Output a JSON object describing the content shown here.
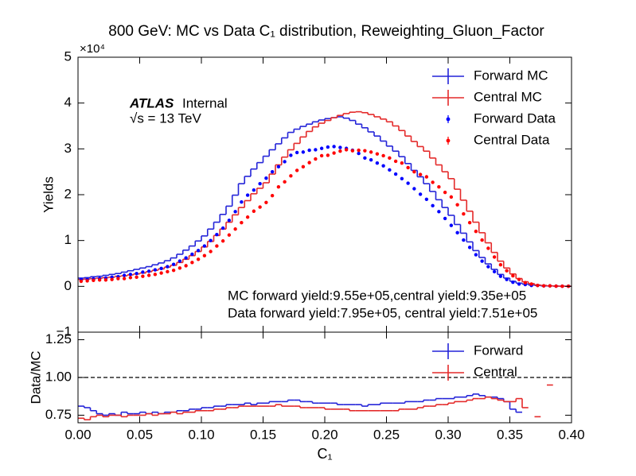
{
  "chart_data": [
    {
      "type": "histogram",
      "title": "800 GeV: MC vs Data C₁ distribution, Reweighting_Gluon_Factor",
      "y_label": "Yields",
      "y_multiplier": "×10⁴",
      "atlas_label": "ATLAS",
      "atlas_status": "Internal",
      "energy_label": "√s = 13 TeV",
      "annotations": [
        "MC forward yield:9.55e+05,central yield:9.35e+05",
        "Data forward yield:7.95e+05, central yield:7.51e+05"
      ],
      "ylim": [
        -1,
        5
      ],
      "yticks": [
        {
          "value": -1,
          "label": "−1"
        },
        0,
        1,
        2,
        3,
        4,
        5
      ],
      "legend": "upper right",
      "bins": [
        0,
        0.005,
        0.01,
        0.015,
        0.02,
        0.025,
        0.03,
        0.035,
        0.04,
        0.045,
        0.05,
        0.055,
        0.06,
        0.065,
        0.07,
        0.075,
        0.08,
        0.085,
        0.09,
        0.095,
        0.1,
        0.105,
        0.11,
        0.115,
        0.12,
        0.125,
        0.13,
        0.135,
        0.14,
        0.145,
        0.15,
        0.155,
        0.16,
        0.165,
        0.17,
        0.175,
        0.18,
        0.185,
        0.19,
        0.195,
        0.2,
        0.205,
        0.21,
        0.215,
        0.22,
        0.225,
        0.23,
        0.235,
        0.24,
        0.245,
        0.25,
        0.255,
        0.26,
        0.265,
        0.27,
        0.275,
        0.28,
        0.285,
        0.29,
        0.295,
        0.3,
        0.305,
        0.31,
        0.315,
        0.32,
        0.325,
        0.33,
        0.335,
        0.34,
        0.345,
        0.35,
        0.355,
        0.36,
        0.365,
        0.37,
        0.375,
        0.38,
        0.385,
        0.39,
        0.395,
        0.4
      ],
      "series": [
        {
          "name": "Forward MC",
          "color": "#2424d8",
          "style": "step",
          "values": [
            0.18,
            0.19,
            0.21,
            0.22,
            0.24,
            0.26,
            0.28,
            0.31,
            0.34,
            0.37,
            0.4,
            0.43,
            0.47,
            0.51,
            0.56,
            0.62,
            0.7,
            0.79,
            0.88,
            0.99,
            1.1,
            1.25,
            1.4,
            1.57,
            1.75,
            1.99,
            2.24,
            2.4,
            2.56,
            2.7,
            2.84,
            2.98,
            3.11,
            3.24,
            3.36,
            3.43,
            3.49,
            3.54,
            3.59,
            3.63,
            3.66,
            3.68,
            3.7,
            3.67,
            3.62,
            3.54,
            3.46,
            3.37,
            3.28,
            3.17,
            3.06,
            2.95,
            2.83,
            2.68,
            2.53,
            2.39,
            2.24,
            2.07,
            1.89,
            1.72,
            1.55,
            1.35,
            1.16,
            0.97,
            0.78,
            0.63,
            0.49,
            0.37,
            0.26,
            0.18,
            0.11,
            0.07,
            0.05,
            0.03,
            0.02,
            0.01,
            0.01,
            0.005,
            0.003,
            0.002
          ]
        },
        {
          "name": "Central MC",
          "color": "#e42a2a",
          "style": "step",
          "values": [
            0.15,
            0.16,
            0.17,
            0.18,
            0.19,
            0.2,
            0.22,
            0.23,
            0.25,
            0.27,
            0.29,
            0.32,
            0.35,
            0.38,
            0.42,
            0.46,
            0.52,
            0.59,
            0.67,
            0.76,
            0.86,
            0.98,
            1.11,
            1.25,
            1.4,
            1.56,
            1.72,
            1.87,
            2.02,
            2.14,
            2.26,
            2.45,
            2.65,
            2.82,
            2.98,
            3.12,
            3.26,
            3.38,
            3.48,
            3.56,
            3.62,
            3.68,
            3.73,
            3.77,
            3.8,
            3.81,
            3.79,
            3.75,
            3.7,
            3.65,
            3.59,
            3.5,
            3.4,
            3.28,
            3.16,
            3.05,
            2.95,
            2.8,
            2.65,
            2.5,
            2.35,
            2.12,
            1.88,
            1.64,
            1.4,
            1.17,
            0.95,
            0.74,
            0.55,
            0.4,
            0.27,
            0.17,
            0.1,
            0.06,
            0.03,
            0.02,
            0.01,
            0.006,
            0.003,
            0.002
          ]
        },
        {
          "name": "Forward Data",
          "color": "#0000ff",
          "style": "points",
          "values": [
            0.15,
            0.15,
            0.16,
            0.17,
            0.18,
            0.2,
            0.21,
            0.24,
            0.26,
            0.28,
            0.31,
            0.33,
            0.36,
            0.39,
            0.43,
            0.48,
            0.55,
            0.62,
            0.7,
            0.78,
            0.88,
            1.0,
            1.13,
            1.27,
            1.44,
            1.63,
            1.84,
            1.99,
            2.1,
            2.24,
            2.36,
            2.5,
            2.61,
            2.72,
            2.86,
            2.92,
            2.93,
            2.97,
            2.98,
            3.01,
            3.04,
            3.05,
            3.03,
            3.01,
            2.97,
            2.9,
            2.8,
            2.76,
            2.69,
            2.63,
            2.54,
            2.45,
            2.35,
            2.25,
            2.13,
            2.01,
            1.9,
            1.76,
            1.63,
            1.48,
            1.33,
            1.17,
            1.01,
            0.85,
            0.69,
            0.55,
            0.43,
            0.32,
            0.22,
            0.15,
            0.09,
            0.05,
            0.04,
            0.02,
            0.02,
            0.01,
            0.01,
            0.004,
            0.002,
            0.002
          ]
        },
        {
          "name": "Central Data",
          "color": "#ff0000",
          "style": "points",
          "values": [
            0.11,
            0.12,
            0.13,
            0.14,
            0.14,
            0.15,
            0.17,
            0.17,
            0.19,
            0.2,
            0.22,
            0.24,
            0.26,
            0.29,
            0.32,
            0.35,
            0.4,
            0.45,
            0.52,
            0.59,
            0.67,
            0.76,
            0.88,
            0.99,
            1.12,
            1.25,
            1.39,
            1.51,
            1.64,
            1.73,
            1.83,
            1.98,
            2.17,
            2.28,
            2.41,
            2.53,
            2.61,
            2.7,
            2.78,
            2.85,
            2.86,
            2.91,
            2.95,
            2.98,
            2.96,
            2.97,
            2.96,
            2.93,
            2.89,
            2.85,
            2.8,
            2.73,
            2.69,
            2.59,
            2.5,
            2.44,
            2.39,
            2.27,
            2.17,
            2.05,
            1.95,
            1.78,
            1.58,
            1.39,
            1.2,
            1.01,
            0.83,
            0.64,
            0.47,
            0.34,
            0.23,
            0.15,
            0.08,
            0.05,
            0.02,
            0.01,
            0.01,
            0.005,
            0.002,
            0.002
          ]
        }
      ]
    },
    {
      "type": "histogram",
      "y_label": "Data/MC",
      "x_label": "C₁",
      "xlim": [
        0,
        0.4
      ],
      "xticks": [
        {
          "value": 0,
          "label": "0.00"
        },
        {
          "value": 0.05,
          "label": "0.05"
        },
        {
          "value": 0.1,
          "label": "0.10"
        },
        {
          "value": 0.15,
          "label": "0.15"
        },
        {
          "value": 0.2,
          "label": "0.20"
        },
        {
          "value": 0.25,
          "label": "0.25"
        },
        {
          "value": 0.3,
          "label": "0.30"
        },
        {
          "value": 0.35,
          "label": "0.35"
        },
        {
          "value": 0.4,
          "label": "0.40"
        }
      ],
      "ylim": [
        0.7,
        1.3
      ],
      "yticks": [
        0.75,
        {
          "value": 1,
          "label": "1.00"
        },
        1.25
      ],
      "ref_line": 1,
      "legend": "upper right",
      "bins": [
        0,
        0.005,
        0.01,
        0.015,
        0.02,
        0.025,
        0.03,
        0.035,
        0.04,
        0.045,
        0.05,
        0.055,
        0.06,
        0.065,
        0.07,
        0.075,
        0.08,
        0.085,
        0.09,
        0.095,
        0.1,
        0.105,
        0.11,
        0.115,
        0.12,
        0.125,
        0.13,
        0.135,
        0.14,
        0.145,
        0.15,
        0.155,
        0.16,
        0.165,
        0.17,
        0.175,
        0.18,
        0.185,
        0.19,
        0.195,
        0.2,
        0.205,
        0.21,
        0.215,
        0.22,
        0.225,
        0.23,
        0.235,
        0.24,
        0.245,
        0.25,
        0.255,
        0.26,
        0.265,
        0.27,
        0.275,
        0.28,
        0.285,
        0.29,
        0.295,
        0.3,
        0.305,
        0.31,
        0.315,
        0.32,
        0.325,
        0.33,
        0.335,
        0.34,
        0.345,
        0.35,
        0.355,
        0.36,
        0.365,
        0.37,
        0.375,
        0.38,
        0.385,
        0.39,
        0.395,
        0.4
      ],
      "series": [
        {
          "name": "Forward",
          "color": "#2424d8",
          "style": "step",
          "values": [
            0.81,
            0.8,
            0.78,
            0.76,
            0.75,
            0.76,
            0.75,
            0.77,
            0.76,
            0.76,
            0.77,
            0.76,
            0.77,
            0.76,
            0.77,
            0.77,
            0.78,
            0.78,
            0.79,
            0.79,
            0.8,
            0.8,
            0.81,
            0.81,
            0.82,
            0.82,
            0.82,
            0.83,
            0.82,
            0.83,
            0.83,
            0.84,
            0.84,
            0.84,
            0.85,
            0.85,
            0.84,
            0.84,
            0.83,
            0.83,
            0.83,
            0.83,
            0.82,
            0.82,
            0.82,
            0.82,
            0.81,
            0.82,
            0.82,
            0.83,
            0.83,
            0.83,
            0.83,
            0.84,
            0.84,
            0.84,
            0.85,
            0.85,
            0.86,
            0.86,
            0.86,
            0.87,
            0.87,
            0.88,
            0.89,
            0.88,
            0.87,
            0.87,
            0.86,
            0.84,
            0.79,
            0.77,
            null,
            null,
            null,
            null,
            null,
            null,
            null,
            null
          ]
        },
        {
          "name": "Central",
          "color": "#e42a2a",
          "style": "step",
          "values": [
            0.73,
            0.72,
            0.74,
            0.75,
            0.74,
            0.75,
            0.75,
            0.74,
            0.75,
            0.75,
            0.75,
            0.76,
            0.75,
            0.76,
            0.76,
            0.77,
            0.76,
            0.77,
            0.77,
            0.78,
            0.78,
            0.78,
            0.79,
            0.79,
            0.8,
            0.8,
            0.81,
            0.81,
            0.81,
            0.81,
            0.81,
            0.81,
            0.82,
            0.81,
            0.81,
            0.81,
            0.8,
            0.8,
            0.8,
            0.8,
            0.79,
            0.79,
            0.79,
            0.79,
            0.78,
            0.78,
            0.78,
            0.78,
            0.78,
            0.78,
            0.78,
            0.78,
            0.79,
            0.79,
            0.79,
            0.8,
            0.81,
            0.81,
            0.82,
            0.82,
            0.83,
            0.84,
            0.84,
            0.85,
            0.86,
            0.86,
            0.87,
            0.86,
            0.85,
            0.84,
            0.84,
            0.86,
            0.8,
            null,
            0.74,
            null,
            0.95,
            null,
            null,
            null
          ]
        }
      ]
    }
  ]
}
